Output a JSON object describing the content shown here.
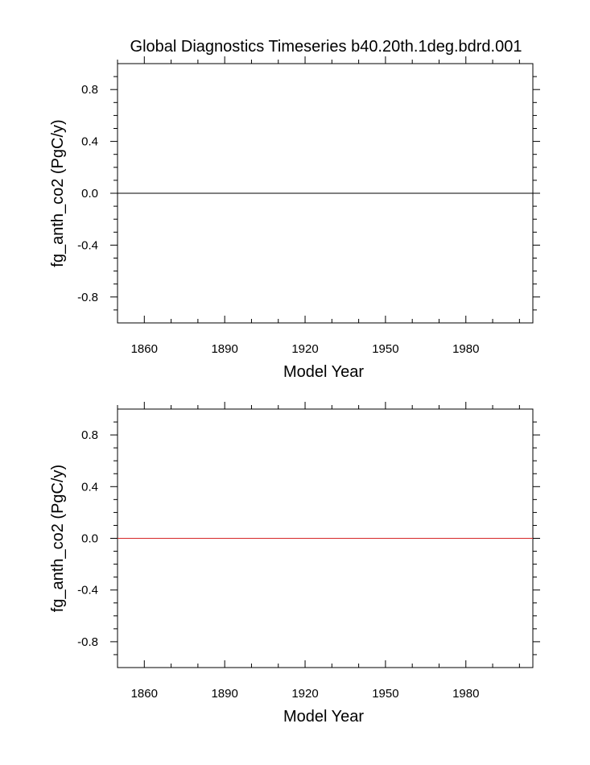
{
  "title": "Global Diagnostics Timeseries b40.20th.1deg.bdrd.001",
  "chart_data": [
    {
      "type": "line",
      "title": "Global Diagnostics Timeseries b40.20th.1deg.bdrd.001",
      "xlabel": "Model Year",
      "ylabel": "fg_anth_co2 (PgC/y)",
      "xlim": [
        1850,
        2005
      ],
      "ylim": [
        -1.0,
        1.0
      ],
      "xticks": [
        1860,
        1890,
        1920,
        1950,
        1980
      ],
      "xtick_labels": [
        "1860",
        "1890",
        "1920",
        "1950",
        "1980"
      ],
      "yticks": [
        -0.8,
        -0.4,
        0.0,
        0.4,
        0.8
      ],
      "ytick_labels": [
        "-0.8",
        "-0.4",
        "0.0",
        "0.4",
        "0.8"
      ],
      "grid": false,
      "series": [
        {
          "x": [
            1850,
            2005
          ],
          "y": [
            0.0,
            0.0
          ],
          "color": "#000000"
        }
      ]
    },
    {
      "type": "line",
      "title": "",
      "xlabel": "Model Year",
      "ylabel": "fg_anth_co2 (PgC/y)",
      "xlim": [
        1850,
        2005
      ],
      "ylim": [
        -1.0,
        1.0
      ],
      "xticks": [
        1860,
        1890,
        1920,
        1950,
        1980
      ],
      "xtick_labels": [
        "1860",
        "1890",
        "1920",
        "1950",
        "1980"
      ],
      "yticks": [
        -0.8,
        -0.4,
        0.0,
        0.4,
        0.8
      ],
      "ytick_labels": [
        "-0.8",
        "-0.4",
        "0.0",
        "0.4",
        "0.8"
      ],
      "grid": false,
      "series": [
        {
          "x": [
            1850,
            2005
          ],
          "y": [
            0.0,
            0.0
          ],
          "color": "#000000"
        },
        {
          "x": [
            1850,
            2005
          ],
          "y": [
            0.0,
            0.0
          ],
          "color": "#d62728"
        }
      ]
    }
  ]
}
